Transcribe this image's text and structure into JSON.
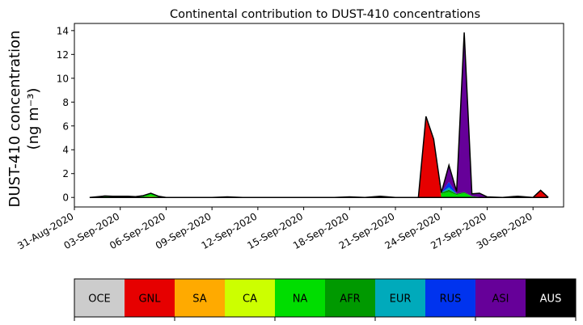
{
  "chart_data": {
    "type": "area",
    "stacked": true,
    "title": "Continental contribution to DUST-410 concentrations",
    "ylabel_line1": "DUST-410 concentration",
    "ylabel_line2": "(ng m⁻³)",
    "xlabel": "",
    "xlim": [
      "2020-08-31",
      "2020-10-02"
    ],
    "ylim": [
      -0.8,
      14.6
    ],
    "yticks": [
      0,
      2,
      4,
      6,
      8,
      10,
      12,
      14
    ],
    "xtick_labels": [
      "31-Aug-2020",
      "03-Sep-2020",
      "06-Sep-2020",
      "09-Sep-2020",
      "12-Sep-2020",
      "15-Sep-2020",
      "18-Sep-2020",
      "21-Sep-2020",
      "24-Sep-2020",
      "27-Sep-2020",
      "30-Sep-2020"
    ],
    "xtick_dates": [
      "2020-08-31",
      "2020-09-03",
      "2020-09-06",
      "2020-09-09",
      "2020-09-12",
      "2020-09-15",
      "2020-09-18",
      "2020-09-21",
      "2020-09-24",
      "2020-09-27",
      "2020-09-30"
    ],
    "grid": false,
    "legend_placement": "bottom colorbar",
    "x": [
      "2020-09-01",
      "2020-09-02",
      "2020-09-02T12:00",
      "2020-09-03",
      "2020-09-03T12:00",
      "2020-09-04",
      "2020-09-04T12:00",
      "2020-09-05",
      "2020-09-05T12:00",
      "2020-09-06",
      "2020-09-07",
      "2020-09-08",
      "2020-09-09",
      "2020-09-10",
      "2020-09-11",
      "2020-09-12",
      "2020-09-13",
      "2020-09-14",
      "2020-09-15",
      "2020-09-16",
      "2020-09-17",
      "2020-09-18",
      "2020-09-19",
      "2020-09-20",
      "2020-09-21",
      "2020-09-22",
      "2020-09-22T12:00",
      "2020-09-23",
      "2020-09-23T12:00",
      "2020-09-24",
      "2020-09-24T12:00",
      "2020-09-25",
      "2020-09-25T12:00",
      "2020-09-26",
      "2020-09-26T12:00",
      "2020-09-27",
      "2020-09-28",
      "2020-09-29",
      "2020-09-30",
      "2020-09-30T12:00",
      "2020-10-01"
    ],
    "series": [
      {
        "name": "OCE",
        "color": "#cccccc",
        "values": [
          0,
          0,
          0,
          0,
          0,
          0,
          0,
          0,
          0,
          0,
          0,
          0,
          0,
          0,
          0,
          0,
          0,
          0,
          0,
          0,
          0,
          0,
          0,
          0,
          0,
          0,
          0,
          0,
          0,
          0,
          0,
          0,
          0,
          0,
          0,
          0,
          0,
          0,
          0,
          0,
          0
        ]
      },
      {
        "name": "GNL",
        "color": "#e60000",
        "values": [
          0,
          0,
          0,
          0,
          0,
          0,
          0,
          0,
          0,
          0,
          0,
          0,
          0,
          0.05,
          0,
          0,
          0,
          0,
          0,
          0,
          0,
          0.05,
          0,
          0,
          0,
          0,
          0,
          6.8,
          4.9,
          0,
          0,
          0,
          0,
          0,
          0,
          0,
          0,
          0.1,
          0,
          0.55,
          0
        ]
      },
      {
        "name": "SA",
        "color": "#ffaa00",
        "values": [
          0,
          0,
          0,
          0,
          0,
          0,
          0,
          0,
          0,
          0,
          0,
          0,
          0,
          0,
          0,
          0,
          0,
          0,
          0,
          0,
          0,
          0,
          0,
          0.1,
          0,
          0,
          0,
          0,
          0,
          0,
          0,
          0,
          0,
          0,
          0,
          0,
          0,
          0,
          0,
          0,
          0
        ]
      },
      {
        "name": "CA",
        "color": "#ccff00",
        "values": [
          0,
          0.02,
          0.05,
          0.02,
          0.05,
          0.02,
          0.05,
          0.1,
          0.05,
          0,
          0,
          0,
          0,
          0,
          0,
          0,
          0,
          0,
          0,
          0,
          0,
          0,
          0,
          0,
          0,
          0,
          0,
          0,
          0,
          0,
          0,
          0,
          0,
          0,
          0,
          0,
          0,
          0,
          0,
          0,
          0
        ]
      },
      {
        "name": "NA",
        "color": "#00dd00",
        "values": [
          0,
          0.1,
          0.05,
          0.08,
          0.05,
          0.05,
          0.1,
          0.25,
          0.05,
          0,
          0,
          0,
          0,
          0,
          0,
          0,
          0,
          0,
          0,
          0,
          0,
          0,
          0,
          0,
          0,
          0,
          0,
          0,
          0,
          0.3,
          0.45,
          0.2,
          0.35,
          0.1,
          0.05,
          0,
          0,
          0,
          0,
          0.05,
          0
        ]
      },
      {
        "name": "AFR",
        "color": "#009900",
        "values": [
          0,
          0,
          0,
          0,
          0,
          0,
          0,
          0,
          0,
          0,
          0,
          0,
          0,
          0,
          0,
          0,
          0,
          0,
          0,
          0,
          0,
          0,
          0,
          0,
          0,
          0,
          0,
          0,
          0,
          0.1,
          0.2,
          0.1,
          0.1,
          0,
          0,
          0,
          0,
          0,
          0,
          0,
          0
        ]
      },
      {
        "name": "EUR",
        "color": "#00aabb",
        "values": [
          0,
          0,
          0,
          0,
          0,
          0,
          0,
          0,
          0,
          0,
          0,
          0,
          0,
          0,
          0,
          0,
          0,
          0,
          0,
          0,
          0,
          0,
          0,
          0,
          0,
          0,
          0,
          0,
          0,
          0,
          0.2,
          0,
          0,
          0,
          0,
          0,
          0,
          0,
          0,
          0,
          0
        ]
      },
      {
        "name": "RUS",
        "color": "#0033ee",
        "values": [
          0,
          0,
          0,
          0,
          0,
          0,
          0,
          0,
          0,
          0,
          0,
          0,
          0,
          0,
          0,
          0,
          0,
          0,
          0,
          0,
          0,
          0,
          0,
          0,
          0,
          0,
          0,
          0,
          0,
          0,
          0.45,
          0,
          0,
          0,
          0,
          0,
          0,
          0,
          0,
          0,
          0
        ]
      },
      {
        "name": "ASI",
        "color": "#660099",
        "values": [
          0,
          0,
          0,
          0,
          0,
          0,
          0,
          0,
          0,
          0,
          0,
          0,
          0,
          0,
          0,
          0,
          0,
          0,
          0,
          0,
          0,
          0,
          0,
          0,
          0,
          0,
          0,
          0,
          0,
          0,
          1.4,
          0.2,
          13.4,
          0.2,
          0.3,
          0.05,
          0,
          0,
          0,
          0,
          0
        ]
      },
      {
        "name": "AUS",
        "color": "#000000",
        "values": [
          0,
          0,
          0,
          0,
          0,
          0,
          0,
          0,
          0,
          0,
          0,
          0,
          0,
          0,
          0,
          0,
          0,
          0,
          0,
          0,
          0,
          0,
          0,
          0,
          0,
          0,
          0,
          0,
          0,
          0,
          0,
          0,
          0,
          0,
          0,
          0,
          0,
          0,
          0,
          0,
          0
        ]
      }
    ],
    "legend": [
      {
        "label": "OCE",
        "color": "#cccccc",
        "text_color": "#000000"
      },
      {
        "label": "GNL",
        "color": "#e60000",
        "text_color": "#000000"
      },
      {
        "label": "SA",
        "color": "#ffaa00",
        "text_color": "#000000"
      },
      {
        "label": "CA",
        "color": "#ccff00",
        "text_color": "#000000"
      },
      {
        "label": "NA",
        "color": "#00dd00",
        "text_color": "#000000"
      },
      {
        "label": "AFR",
        "color": "#009900",
        "text_color": "#000000"
      },
      {
        "label": "EUR",
        "color": "#00aabb",
        "text_color": "#000000"
      },
      {
        "label": "RUS",
        "color": "#0033ee",
        "text_color": "#000000"
      },
      {
        "label": "ASI",
        "color": "#660099",
        "text_color": "#000000"
      },
      {
        "label": "AUS",
        "color": "#000000",
        "text_color": "#ffffff"
      }
    ]
  }
}
